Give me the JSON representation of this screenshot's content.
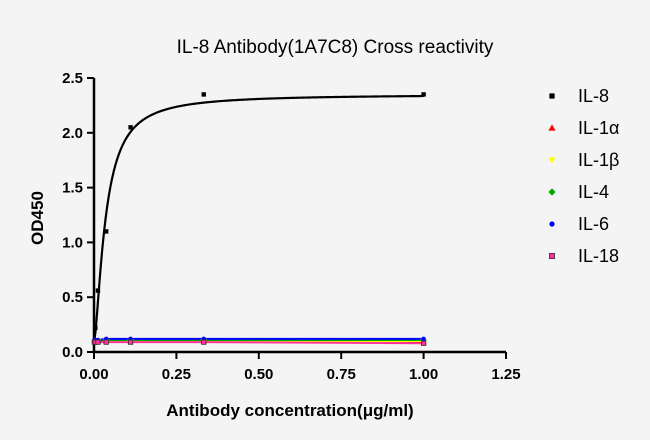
{
  "chart_data": {
    "type": "line",
    "title": "IL-8 Antibody(1A7C8) Cross reactivity",
    "xlabel": "Antibody concentration(μg/ml)",
    "ylabel": "OD450",
    "xlim": [
      0,
      1.25
    ],
    "ylim": [
      0,
      2.5
    ],
    "xticks": [
      "0.00",
      "0.25",
      "0.50",
      "0.75",
      "1.00",
      "1.25"
    ],
    "yticks": [
      "0.0",
      "0.5",
      "1.0",
      "1.5",
      "2.0",
      "2.5"
    ],
    "grid": false,
    "legend_position": "right",
    "series": [
      {
        "name": "IL-8",
        "color": "#000000",
        "marker": "square",
        "points": [
          [
            0.0014,
            0.1
          ],
          [
            0.004,
            0.22
          ],
          [
            0.012,
            0.56
          ],
          [
            0.037,
            1.1
          ],
          [
            0.111,
            2.05
          ],
          [
            0.333,
            2.35
          ],
          [
            1.0,
            2.35
          ]
        ],
        "fit": "4PL: bottom 0.08, top 2.35, EC50 0.035, slope 1.5"
      },
      {
        "name": "IL-1α",
        "color": "#ff0000",
        "marker": "triangle-up",
        "points": [
          [
            0.0014,
            0.1
          ],
          [
            0.004,
            0.1
          ],
          [
            0.012,
            0.1
          ],
          [
            0.037,
            0.1
          ],
          [
            0.111,
            0.1
          ],
          [
            0.333,
            0.1
          ],
          [
            1.0,
            0.09
          ]
        ]
      },
      {
        "name": "IL-1β",
        "color": "#ffff00",
        "marker": "triangle-down",
        "points": [
          [
            0.0014,
            0.1
          ],
          [
            0.004,
            0.1
          ],
          [
            0.012,
            0.1
          ],
          [
            0.037,
            0.1
          ],
          [
            0.111,
            0.1
          ],
          [
            0.333,
            0.1
          ],
          [
            1.0,
            0.1
          ]
        ]
      },
      {
        "name": "IL-4",
        "color": "#00aa00",
        "marker": "diamond",
        "points": [
          [
            0.0014,
            0.1
          ],
          [
            0.004,
            0.1
          ],
          [
            0.012,
            0.1
          ],
          [
            0.037,
            0.11
          ],
          [
            0.111,
            0.11
          ],
          [
            0.333,
            0.11
          ],
          [
            1.0,
            0.11
          ]
        ]
      },
      {
        "name": "IL-6",
        "color": "#0000ff",
        "marker": "circle",
        "points": [
          [
            0.0014,
            0.11
          ],
          [
            0.004,
            0.11
          ],
          [
            0.012,
            0.11
          ],
          [
            0.037,
            0.12
          ],
          [
            0.111,
            0.12
          ],
          [
            0.333,
            0.12
          ],
          [
            1.0,
            0.12
          ]
        ]
      },
      {
        "name": "IL-18",
        "color": "#ff3399",
        "marker": "square",
        "points": [
          [
            0.0014,
            0.09
          ],
          [
            0.004,
            0.09
          ],
          [
            0.012,
            0.09
          ],
          [
            0.037,
            0.09
          ],
          [
            0.111,
            0.09
          ],
          [
            0.333,
            0.09
          ],
          [
            1.0,
            0.08
          ]
        ]
      }
    ]
  }
}
